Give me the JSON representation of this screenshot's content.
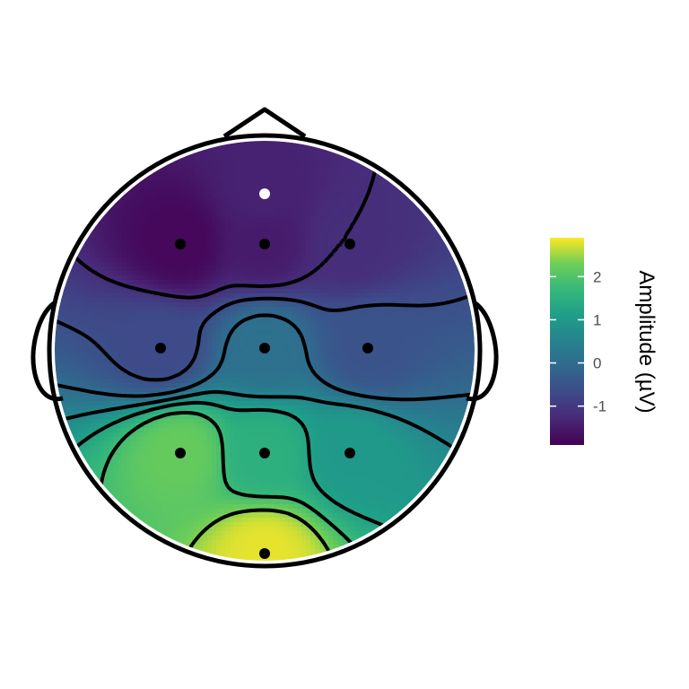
{
  "chart_data": {
    "type": "heatmap",
    "subtype": "eeg-scalp-topography",
    "title": "",
    "colormap": "viridis",
    "color_range": [
      -1.9,
      2.9
    ],
    "legend": {
      "title": "Amplitude (µV)",
      "placement": "right",
      "ticks": [
        -1,
        0,
        1,
        2
      ],
      "tick_labels": [
        "-1",
        "0",
        "1",
        "2"
      ]
    },
    "contour_levels": [
      -1.2,
      -0.6,
      0.0,
      0.6,
      1.2,
      1.8,
      2.4
    ],
    "contour_style": "negative levels dashed, positive levels solid",
    "electrodes": [
      {
        "row": "pre-frontal",
        "col": "midline",
        "amplitude": -1.4,
        "highlighted": true
      },
      {
        "row": "frontal",
        "col": "left",
        "amplitude": -1.8,
        "highlighted": false
      },
      {
        "row": "frontal",
        "col": "midline",
        "amplitude": -1.5,
        "highlighted": false
      },
      {
        "row": "frontal",
        "col": "right",
        "amplitude": -1.2,
        "highlighted": false
      },
      {
        "row": "central",
        "col": "left",
        "amplitude": -0.7,
        "highlighted": false
      },
      {
        "row": "central",
        "col": "midline",
        "amplitude": 0.1,
        "highlighted": false
      },
      {
        "row": "central",
        "col": "right",
        "amplitude": -0.5,
        "highlighted": false
      },
      {
        "row": "parietal",
        "col": "left",
        "amplitude": 2.2,
        "highlighted": false
      },
      {
        "row": "parietal",
        "col": "midline",
        "amplitude": 1.5,
        "highlighted": false
      },
      {
        "row": "parietal",
        "col": "right",
        "amplitude": 1.0,
        "highlighted": false
      },
      {
        "row": "occipital",
        "col": "midline",
        "amplitude": 2.8,
        "highlighted": false
      }
    ]
  }
}
